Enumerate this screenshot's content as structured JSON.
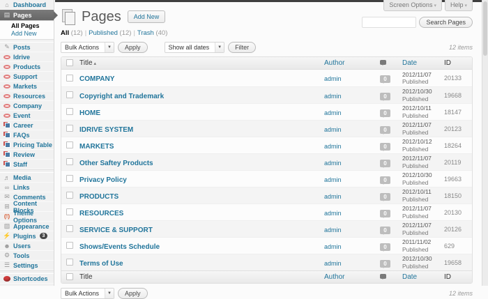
{
  "page_title": "Pages",
  "labels": {
    "add_new": "Add New"
  },
  "screen_tabs": {
    "screen_options": "Screen Options",
    "help": "Help",
    "arrow": "▾"
  },
  "search": {
    "value": "",
    "button": "Search Pages"
  },
  "views": [
    {
      "label": "All",
      "count": "(12)",
      "current": true
    },
    {
      "label": "Published",
      "count": "(12)",
      "current": false
    },
    {
      "label": "Trash",
      "count": "(40)",
      "current": false
    }
  ],
  "tablenav": {
    "bulk_actions": "Bulk Actions",
    "apply": "Apply",
    "dates": "Show all dates",
    "filter": "Filter",
    "items_count": "12 items",
    "select_arrow": "▼"
  },
  "table": {
    "headers": {
      "title": "Title",
      "author": "Author",
      "date": "Date",
      "id": "ID"
    },
    "sort_indicator": "▴",
    "rows": [
      {
        "title": "COMPANY",
        "author": "admin",
        "comments": "0",
        "date": "2012/11/07",
        "status": "Published",
        "id": "20133"
      },
      {
        "title": "Copyright and Trademark",
        "author": "admin",
        "comments": "0",
        "date": "2012/10/30",
        "status": "Published",
        "id": "19668"
      },
      {
        "title": "HOME",
        "author": "admin",
        "comments": "0",
        "date": "2012/10/11",
        "status": "Published",
        "id": "18147"
      },
      {
        "title": "IDRIVE SYSTEM",
        "author": "admin",
        "comments": "0",
        "date": "2012/11/07",
        "status": "Published",
        "id": "20123"
      },
      {
        "title": "MARKETS",
        "author": "admin",
        "comments": "0",
        "date": "2012/10/12",
        "status": "Published",
        "id": "18264"
      },
      {
        "title": "Other Saftey Products",
        "author": "admin",
        "comments": "0",
        "date": "2012/11/07",
        "status": "Published",
        "id": "20119"
      },
      {
        "title": "Privacy Policy",
        "author": "admin",
        "comments": "0",
        "date": "2012/10/30",
        "status": "Published",
        "id": "19663"
      },
      {
        "title": "PRODUCTS",
        "author": "admin",
        "comments": "0",
        "date": "2012/10/11",
        "status": "Published",
        "id": "18150"
      },
      {
        "title": "RESOURCES",
        "author": "admin",
        "comments": "0",
        "date": "2012/11/07",
        "status": "Published",
        "id": "20130"
      },
      {
        "title": "SERVICE & SUPPORT",
        "author": "admin",
        "comments": "0",
        "date": "2012/11/07",
        "status": "Published",
        "id": "20126"
      },
      {
        "title": "Shows/Events Schedule",
        "author": "admin",
        "comments": "0",
        "date": "2011/11/02",
        "status": "Published",
        "id": "629"
      },
      {
        "title": "Terms of Use",
        "author": "admin",
        "comments": "0",
        "date": "2012/10/30",
        "status": "Published",
        "id": "19658"
      }
    ]
  },
  "sidebar": {
    "items": [
      {
        "label": "Dashboard",
        "icon": "dashboard-icon"
      },
      {
        "label": "Pages",
        "icon": "pages-icon",
        "active": true
      },
      {
        "label": "All Pages",
        "type": "subitem",
        "current": true
      },
      {
        "label": "Add New",
        "type": "subitem"
      },
      {
        "type": "separator"
      },
      {
        "label": "Posts",
        "icon": "posts-icon"
      },
      {
        "label": "Idrive",
        "icon": "ring-icon"
      },
      {
        "label": "Products",
        "icon": "ring-icon"
      },
      {
        "label": "Support",
        "icon": "ring-icon"
      },
      {
        "label": "Markets",
        "icon": "ring-icon"
      },
      {
        "label": "Resources",
        "icon": "ring-icon"
      },
      {
        "label": "Company",
        "icon": "ring-icon"
      },
      {
        "label": "Event",
        "icon": "ring-icon"
      },
      {
        "label": "Career",
        "icon": "layers-icon"
      },
      {
        "label": "FAQs",
        "icon": "layers-icon"
      },
      {
        "label": "Pricing Table",
        "icon": "layers-icon"
      },
      {
        "label": "Review",
        "icon": "layers-icon"
      },
      {
        "label": "Staff",
        "icon": "layers-icon"
      },
      {
        "type": "separator"
      },
      {
        "label": "Media",
        "icon": "media-icon"
      },
      {
        "label": "Links",
        "icon": "links-icon"
      },
      {
        "label": "Comments",
        "icon": "comments-icon"
      },
      {
        "label": "Content Blocks",
        "icon": "content-blocks-icon"
      },
      {
        "label": "Theme Options",
        "icon": "theme-options-icon"
      },
      {
        "label": "Appearance",
        "icon": "appearance-icon"
      },
      {
        "label": "Plugins",
        "icon": "plugins-icon",
        "badge": "3"
      },
      {
        "label": "Users",
        "icon": "users-icon"
      },
      {
        "label": "Tools",
        "icon": "tools-icon"
      },
      {
        "label": "Settings",
        "icon": "settings-icon"
      },
      {
        "type": "separator"
      },
      {
        "label": "Shortcodes",
        "icon": "shortcodes-icon"
      }
    ]
  },
  "colors": {
    "link": "#21759b",
    "accent_red": "#d54e21",
    "active_menu": "#6a6a6a",
    "badge_gray": "#bdbdbd"
  }
}
